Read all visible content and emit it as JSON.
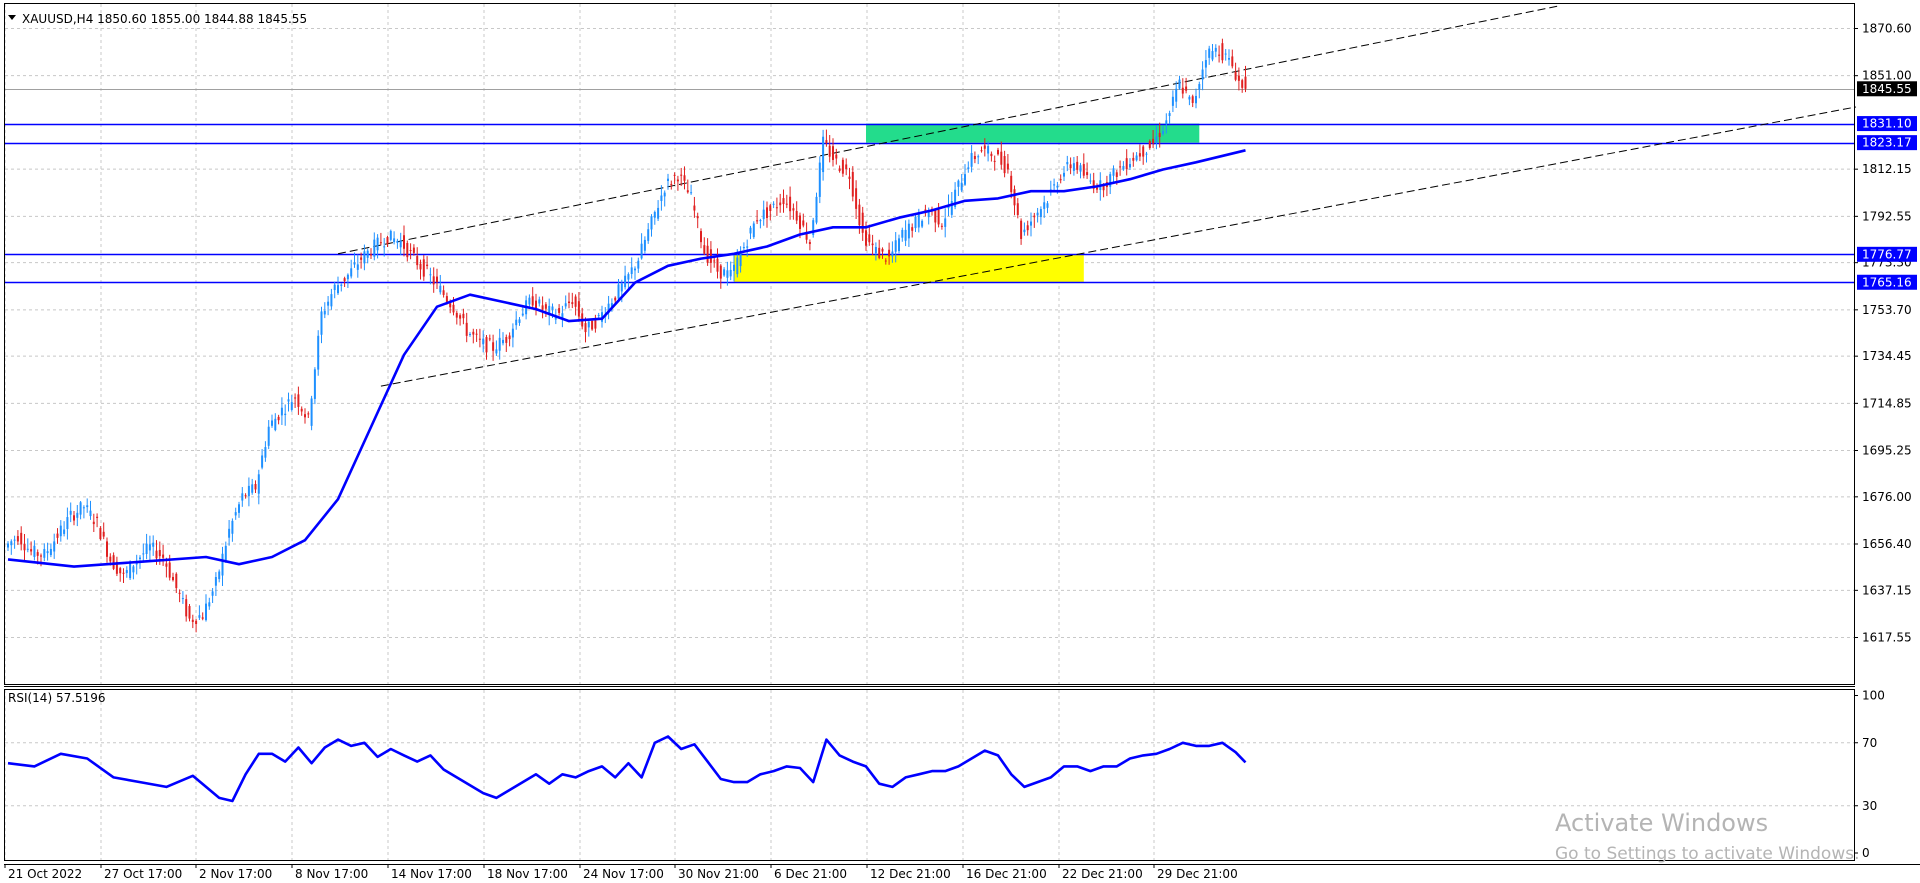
{
  "header": {
    "menu_icon": "triangle-down-icon",
    "symbol_info": "XAUUSD,H4  1850.60 1855.00 1844.88 1845.55"
  },
  "indicator": {
    "label": "RSI(14) 57.5196"
  },
  "watermark": {
    "title": "Activate Windows",
    "subtitle": "Go to Settings to activate Windows."
  },
  "price_scale": [
    "1870.60",
    "1851.00",
    "1812.15",
    "1792.55",
    "1773.30",
    "1753.70",
    "1734.45",
    "1714.85",
    "1695.25",
    "1676.00",
    "1656.40",
    "1637.15",
    "1617.55"
  ],
  "rsi_scale": [
    "100",
    "70",
    "30",
    "0"
  ],
  "levels": [
    {
      "price": 1845.55,
      "label": "1845.55",
      "type": "current",
      "color": "#000000"
    },
    {
      "price": 1831.1,
      "label": "1831.10",
      "type": "hline",
      "color": "#0000ff"
    },
    {
      "price": 1823.17,
      "label": "1823.17",
      "type": "hline",
      "color": "#0000ff"
    },
    {
      "price": 1776.77,
      "label": "1776.77",
      "type": "hline",
      "color": "#0000ff"
    },
    {
      "price": 1765.16,
      "label": "1765.16",
      "type": "hline",
      "color": "#0000ff"
    }
  ],
  "colors": {
    "bull": "#1e90ff",
    "bear": "#e02020",
    "ma": "#0000ff",
    "rsi": "#0000ff",
    "grid": "#c8c8c8",
    "resistance_zone": "#23dc8c",
    "support_zone": "#ffff00",
    "channel": "#000000"
  },
  "chart_data": [
    {
      "type": "candlestick",
      "title": "XAUUSD,H4",
      "y_ticks": [
        1870.6,
        1851.0,
        1812.15,
        1792.55,
        1773.3,
        1753.7,
        1734.45,
        1714.85,
        1695.25,
        1676.0,
        1656.4,
        1637.15,
        1617.55
      ],
      "ylim": [
        1612,
        1880
      ],
      "x_labels": [
        "21 Oct 2022",
        "27 Oct 17:00",
        "2 Nov 17:00",
        "8 Nov 17:00",
        "14 Nov 17:00",
        "18 Nov 17:00",
        "24 Nov 17:00",
        "30 Nov 21:00",
        "6 Dec 21:00",
        "12 Dec 21:00",
        "16 Dec 21:00",
        "22 Dec 21:00",
        "29 Dec 21:00"
      ],
      "last_bar": {
        "open": 1850.6,
        "high": 1855.0,
        "low": 1844.88,
        "close": 1845.55
      },
      "close_path": [
        [
          0,
          1655
        ],
        [
          4,
          1660
        ],
        [
          8,
          1653
        ],
        [
          12,
          1652
        ],
        [
          16,
          1660
        ],
        [
          20,
          1668
        ],
        [
          24,
          1672
        ],
        [
          28,
          1665
        ],
        [
          32,
          1650
        ],
        [
          36,
          1643
        ],
        [
          40,
          1650
        ],
        [
          44,
          1655
        ],
        [
          48,
          1651
        ],
        [
          52,
          1638
        ],
        [
          56,
          1625
        ],
        [
          60,
          1627
        ],
        [
          64,
          1640
        ],
        [
          68,
          1662
        ],
        [
          72,
          1676
        ],
        [
          76,
          1680
        ],
        [
          80,
          1705
        ],
        [
          84,
          1712
        ],
        [
          88,
          1718
        ],
        [
          92,
          1708
        ],
        [
          96,
          1752
        ],
        [
          100,
          1763
        ],
        [
          104,
          1768
        ],
        [
          108,
          1775
        ],
        [
          112,
          1780
        ],
        [
          116,
          1784
        ],
        [
          120,
          1782
        ],
        [
          124,
          1775
        ],
        [
          128,
          1769
        ],
        [
          132,
          1762
        ],
        [
          136,
          1755
        ],
        [
          140,
          1745
        ],
        [
          144,
          1740
        ],
        [
          148,
          1738
        ],
        [
          152,
          1742
        ],
        [
          156,
          1752
        ],
        [
          160,
          1758
        ],
        [
          164,
          1753
        ],
        [
          168,
          1752
        ],
        [
          172,
          1758
        ],
        [
          176,
          1745
        ],
        [
          180,
          1750
        ],
        [
          184,
          1758
        ],
        [
          188,
          1765
        ],
        [
          192,
          1775
        ],
        [
          196,
          1790
        ],
        [
          200,
          1805
        ],
        [
          204,
          1810
        ],
        [
          208,
          1800
        ],
        [
          212,
          1778
        ],
        [
          216,
          1770
        ],
        [
          220,
          1768
        ],
        [
          224,
          1780
        ],
        [
          228,
          1792
        ],
        [
          232,
          1795
        ],
        [
          236,
          1800
        ],
        [
          240,
          1793
        ],
        [
          244,
          1782
        ],
        [
          248,
          1823
        ],
        [
          252,
          1815
        ],
        [
          256,
          1810
        ],
        [
          260,
          1785
        ],
        [
          264,
          1778
        ],
        [
          268,
          1775
        ],
        [
          272,
          1785
        ],
        [
          276,
          1790
        ],
        [
          280,
          1795
        ],
        [
          284,
          1790
        ],
        [
          288,
          1802
        ],
        [
          292,
          1815
        ],
        [
          296,
          1820
        ],
        [
          300,
          1818
        ],
        [
          304,
          1812
        ],
        [
          308,
          1785
        ],
        [
          312,
          1793
        ],
        [
          316,
          1800
        ],
        [
          320,
          1810
        ],
        [
          324,
          1815
        ],
        [
          328,
          1808
        ],
        [
          332,
          1805
        ],
        [
          336,
          1810
        ],
        [
          340,
          1815
        ],
        [
          344,
          1819
        ],
        [
          348,
          1823
        ],
        [
          352,
          1832
        ],
        [
          356,
          1848
        ],
        [
          360,
          1838
        ],
        [
          364,
          1860
        ],
        [
          368,
          1862
        ],
        [
          372,
          1855
        ],
        [
          375,
          1845.55
        ]
      ],
      "ma_path": [
        [
          0,
          1650
        ],
        [
          20,
          1647
        ],
        [
          40,
          1649
        ],
        [
          60,
          1651
        ],
        [
          70,
          1648
        ],
        [
          80,
          1651
        ],
        [
          90,
          1658
        ],
        [
          100,
          1675
        ],
        [
          110,
          1705
        ],
        [
          120,
          1735
        ],
        [
          130,
          1755
        ],
        [
          140,
          1760
        ],
        [
          150,
          1757
        ],
        [
          160,
          1754
        ],
        [
          170,
          1749
        ],
        [
          180,
          1750
        ],
        [
          190,
          1765
        ],
        [
          200,
          1772
        ],
        [
          210,
          1775
        ],
        [
          220,
          1777
        ],
        [
          230,
          1780
        ],
        [
          240,
          1785
        ],
        [
          250,
          1788
        ],
        [
          260,
          1788
        ],
        [
          270,
          1792
        ],
        [
          280,
          1795
        ],
        [
          290,
          1799
        ],
        [
          300,
          1800
        ],
        [
          310,
          1803
        ],
        [
          320,
          1803
        ],
        [
          330,
          1805
        ],
        [
          340,
          1808
        ],
        [
          350,
          1812
        ],
        [
          360,
          1815
        ],
        [
          375,
          1820
        ]
      ],
      "channel_upper": {
        "x1": 100,
        "p1": 1777,
        "x2": 470,
        "p2": 1880
      },
      "channel_lower": {
        "x1": 113,
        "p1": 1722,
        "x2": 560,
        "p2": 1838
      },
      "resistance_zone": {
        "x_from": 260,
        "x_to": 361,
        "p_from": 1823.17,
        "p_to": 1831.1
      },
      "support_zone": {
        "x_from": 220,
        "x_to": 326,
        "p_from": 1765.16,
        "p_to": 1776.77
      }
    },
    {
      "type": "line",
      "title": "RSI(14) 57.5196",
      "ylim": [
        0,
        100
      ],
      "y_ticks": [
        100,
        70,
        30,
        0
      ],
      "last_value": 57.5196,
      "values": [
        [
          0,
          57
        ],
        [
          8,
          55
        ],
        [
          16,
          63
        ],
        [
          24,
          60
        ],
        [
          32,
          48
        ],
        [
          40,
          45
        ],
        [
          48,
          42
        ],
        [
          56,
          49
        ],
        [
          64,
          35
        ],
        [
          68,
          33
        ],
        [
          72,
          50
        ],
        [
          76,
          63
        ],
        [
          80,
          63
        ],
        [
          84,
          58
        ],
        [
          88,
          67
        ],
        [
          92,
          57
        ],
        [
          96,
          67
        ],
        [
          100,
          72
        ],
        [
          104,
          68
        ],
        [
          108,
          70
        ],
        [
          112,
          61
        ],
        [
          116,
          66
        ],
        [
          120,
          62
        ],
        [
          124,
          58
        ],
        [
          128,
          62
        ],
        [
          132,
          53
        ],
        [
          136,
          48
        ],
        [
          140,
          43
        ],
        [
          144,
          38
        ],
        [
          148,
          35
        ],
        [
          152,
          40
        ],
        [
          156,
          45
        ],
        [
          160,
          50
        ],
        [
          164,
          44
        ],
        [
          168,
          50
        ],
        [
          172,
          48
        ],
        [
          176,
          52
        ],
        [
          180,
          55
        ],
        [
          184,
          48
        ],
        [
          188,
          57
        ],
        [
          192,
          48
        ],
        [
          196,
          70
        ],
        [
          200,
          74
        ],
        [
          204,
          66
        ],
        [
          208,
          69
        ],
        [
          212,
          58
        ],
        [
          216,
          47
        ],
        [
          220,
          45
        ],
        [
          224,
          45
        ],
        [
          228,
          50
        ],
        [
          232,
          52
        ],
        [
          236,
          55
        ],
        [
          240,
          54
        ],
        [
          244,
          45
        ],
        [
          248,
          72
        ],
        [
          252,
          62
        ],
        [
          256,
          58
        ],
        [
          260,
          55
        ],
        [
          264,
          44
        ],
        [
          268,
          42
        ],
        [
          272,
          48
        ],
        [
          276,
          50
        ],
        [
          280,
          52
        ],
        [
          284,
          52
        ],
        [
          288,
          55
        ],
        [
          292,
          60
        ],
        [
          296,
          65
        ],
        [
          300,
          62
        ],
        [
          304,
          50
        ],
        [
          308,
          42
        ],
        [
          312,
          45
        ],
        [
          316,
          48
        ],
        [
          320,
          55
        ],
        [
          324,
          55
        ],
        [
          328,
          52
        ],
        [
          332,
          55
        ],
        [
          336,
          55
        ],
        [
          340,
          60
        ],
        [
          344,
          62
        ],
        [
          348,
          63
        ],
        [
          352,
          66
        ],
        [
          356,
          70
        ],
        [
          360,
          68
        ],
        [
          364,
          68
        ],
        [
          368,
          70
        ],
        [
          372,
          64
        ],
        [
          375,
          57.5
        ]
      ]
    }
  ]
}
